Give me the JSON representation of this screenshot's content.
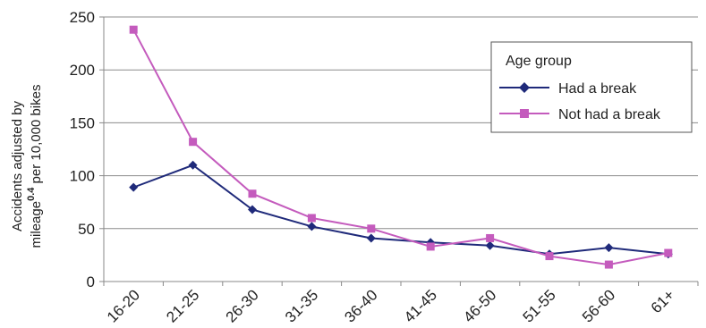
{
  "chart_data": {
    "type": "line",
    "categories": [
      "16-20",
      "21-25",
      "26-30",
      "31-35",
      "36-40",
      "41-45",
      "46-50",
      "51-55",
      "56-60",
      "61+"
    ],
    "series": [
      {
        "name": "Had a break",
        "values": [
          89,
          110,
          68,
          52,
          41,
          37,
          34,
          26,
          32,
          26
        ],
        "color": "#1f2a7a",
        "marker": "diamond"
      },
      {
        "name": "Not had a break",
        "values": [
          238,
          132,
          83,
          60,
          50,
          33,
          41,
          24,
          16,
          27
        ],
        "color": "#c45bbd",
        "marker": "square"
      }
    ],
    "ylim": [
      0,
      250
    ],
    "yticks": [
      "0",
      "50",
      "100",
      "150",
      "200",
      "250"
    ],
    "ylabel_line1": "Accidents adjusted by",
    "ylabel_line2_pre": "mileage",
    "ylabel_line2_sup": "0.4",
    "ylabel_line2_post": " per 10,000 bikes",
    "xlabel": "",
    "grid": true,
    "legend_title": "Age group",
    "legend_position": "top-right"
  }
}
